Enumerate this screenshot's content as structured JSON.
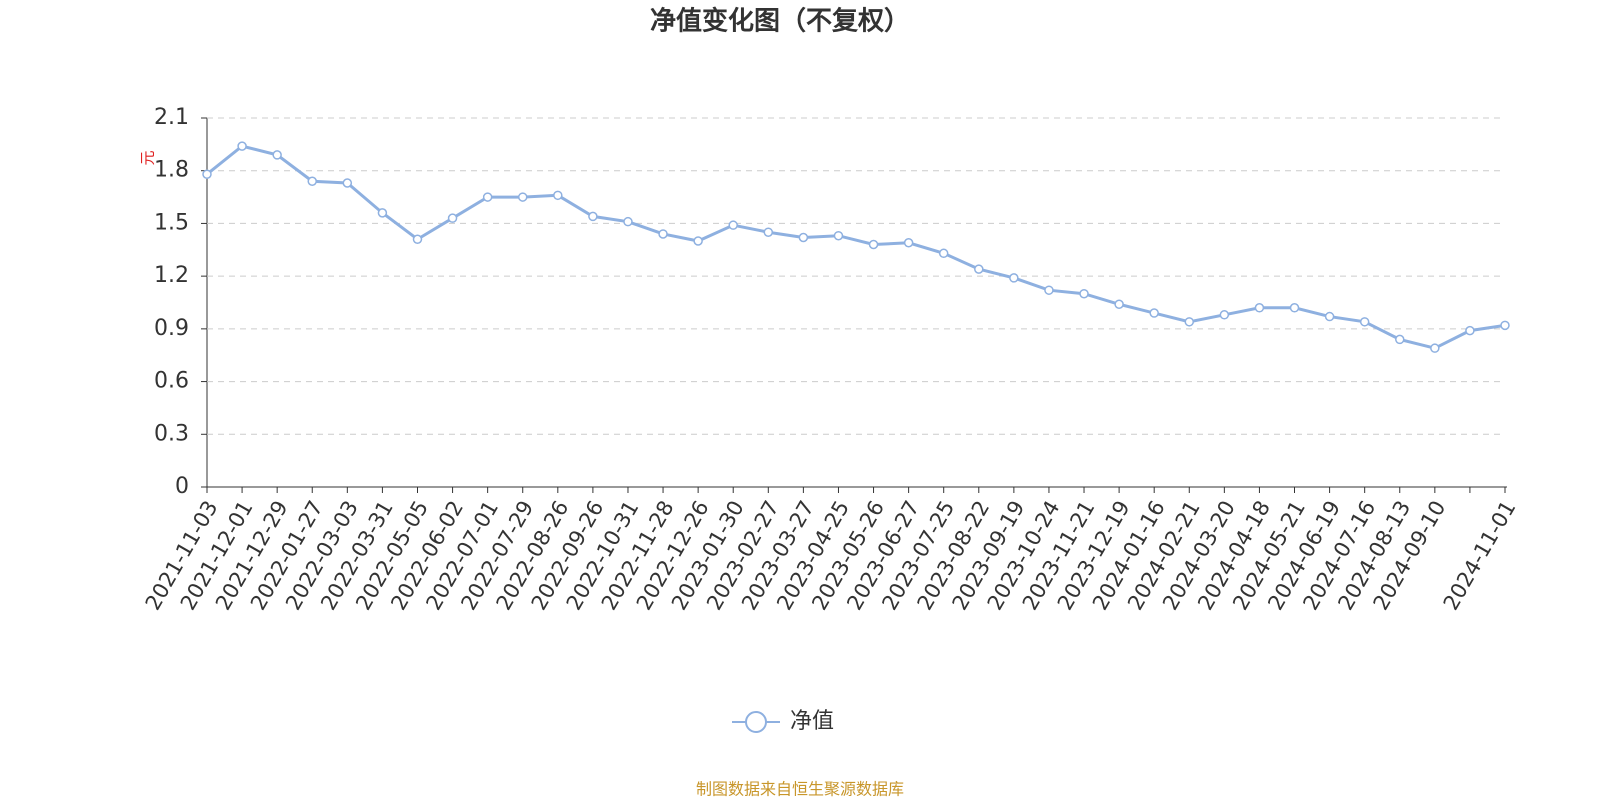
{
  "chart_data": {
    "type": "line",
    "title": "净值变化图（不复权）",
    "y_label": "元",
    "categories": [
      "2021-11-03",
      "2021-12-01",
      "2021-12-29",
      "2022-01-27",
      "2022-03-03",
      "2022-03-31",
      "2022-05-05",
      "2022-06-02",
      "2022-07-01",
      "2022-07-29",
      "2022-08-26",
      "2022-09-26",
      "2022-10-31",
      "2022-11-28",
      "2022-12-26",
      "2023-01-30",
      "2023-02-27",
      "2023-03-27",
      "2023-04-25",
      "2023-05-26",
      "2023-06-27",
      "2023-07-25",
      "2023-08-22",
      "2023-09-19",
      "2023-10-24",
      "2023-11-21",
      "2023-12-19",
      "2024-01-16",
      "2024-02-21",
      "2024-03-20",
      "2024-04-18",
      "2024-05-21",
      "2024-06-19",
      "2024-07-16",
      "2024-08-13",
      "2024-09-10",
      null,
      "2024-11-01"
    ],
    "series": [
      {
        "name": "净值",
        "color": "#8eb0e0",
        "values": [
          1.78,
          1.94,
          1.89,
          1.74,
          1.73,
          1.56,
          1.41,
          1.53,
          1.65,
          1.65,
          1.66,
          1.54,
          1.51,
          1.44,
          1.4,
          1.49,
          1.45,
          1.42,
          1.43,
          1.38,
          1.39,
          1.33,
          1.24,
          1.19,
          1.12,
          1.1,
          1.04,
          0.99,
          0.94,
          0.98,
          1.02,
          1.02,
          0.97,
          0.94,
          0.84,
          0.79,
          0.89,
          0.92
        ]
      }
    ],
    "ylim": [
      0,
      2.1
    ],
    "yticks": [
      0,
      0.3,
      0.6,
      0.9,
      1.2,
      1.5,
      1.8,
      2.1
    ],
    "grid": true,
    "source": "制图数据来自恒生聚源数据库"
  }
}
